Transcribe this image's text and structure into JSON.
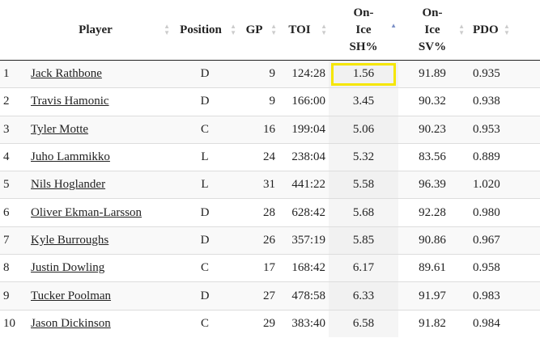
{
  "headers": {
    "index": "",
    "player": "Player",
    "position": "Position",
    "gp": "GP",
    "toi": "TOI",
    "sh": "On-Ice SH%",
    "sv": "On-Ice SV%",
    "pdo": "PDO"
  },
  "sort": {
    "column": "On-Ice SH%",
    "direction": "ascending"
  },
  "highlight_color": "#f5e600",
  "rows": [
    {
      "idx": "1",
      "player": "Jack Rathbone",
      "pos": "D",
      "gp": "9",
      "toi": "124:28",
      "sh": "1.56",
      "sv": "91.89",
      "pdo": "0.935"
    },
    {
      "idx": "2",
      "player": "Travis Hamonic",
      "pos": "D",
      "gp": "9",
      "toi": "166:00",
      "sh": "3.45",
      "sv": "90.32",
      "pdo": "0.938"
    },
    {
      "idx": "3",
      "player": "Tyler Motte",
      "pos": "C",
      "gp": "16",
      "toi": "199:04",
      "sh": "5.06",
      "sv": "90.23",
      "pdo": "0.953"
    },
    {
      "idx": "4",
      "player": "Juho Lammikko",
      "pos": "L",
      "gp": "24",
      "toi": "238:04",
      "sh": "5.32",
      "sv": "83.56",
      "pdo": "0.889"
    },
    {
      "idx": "5",
      "player": "Nils Hoglander",
      "pos": "L",
      "gp": "31",
      "toi": "441:22",
      "sh": "5.58",
      "sv": "96.39",
      "pdo": "1.020"
    },
    {
      "idx": "6",
      "player": "Oliver Ekman-Larsson",
      "pos": "D",
      "gp": "28",
      "toi": "628:42",
      "sh": "5.68",
      "sv": "92.28",
      "pdo": "0.980"
    },
    {
      "idx": "7",
      "player": "Kyle Burroughs",
      "pos": "D",
      "gp": "26",
      "toi": "357:19",
      "sh": "5.85",
      "sv": "90.86",
      "pdo": "0.967"
    },
    {
      "idx": "8",
      "player": "Justin Dowling",
      "pos": "C",
      "gp": "17",
      "toi": "168:42",
      "sh": "6.17",
      "sv": "89.61",
      "pdo": "0.958"
    },
    {
      "idx": "9",
      "player": "Tucker Poolman",
      "pos": "D",
      "gp": "27",
      "toi": "478:58",
      "sh": "6.33",
      "sv": "91.97",
      "pdo": "0.983"
    },
    {
      "idx": "10",
      "player": "Jason Dickinson",
      "pos": "C",
      "gp": "29",
      "toi": "383:40",
      "sh": "6.58",
      "sv": "91.82",
      "pdo": "0.984"
    }
  ]
}
